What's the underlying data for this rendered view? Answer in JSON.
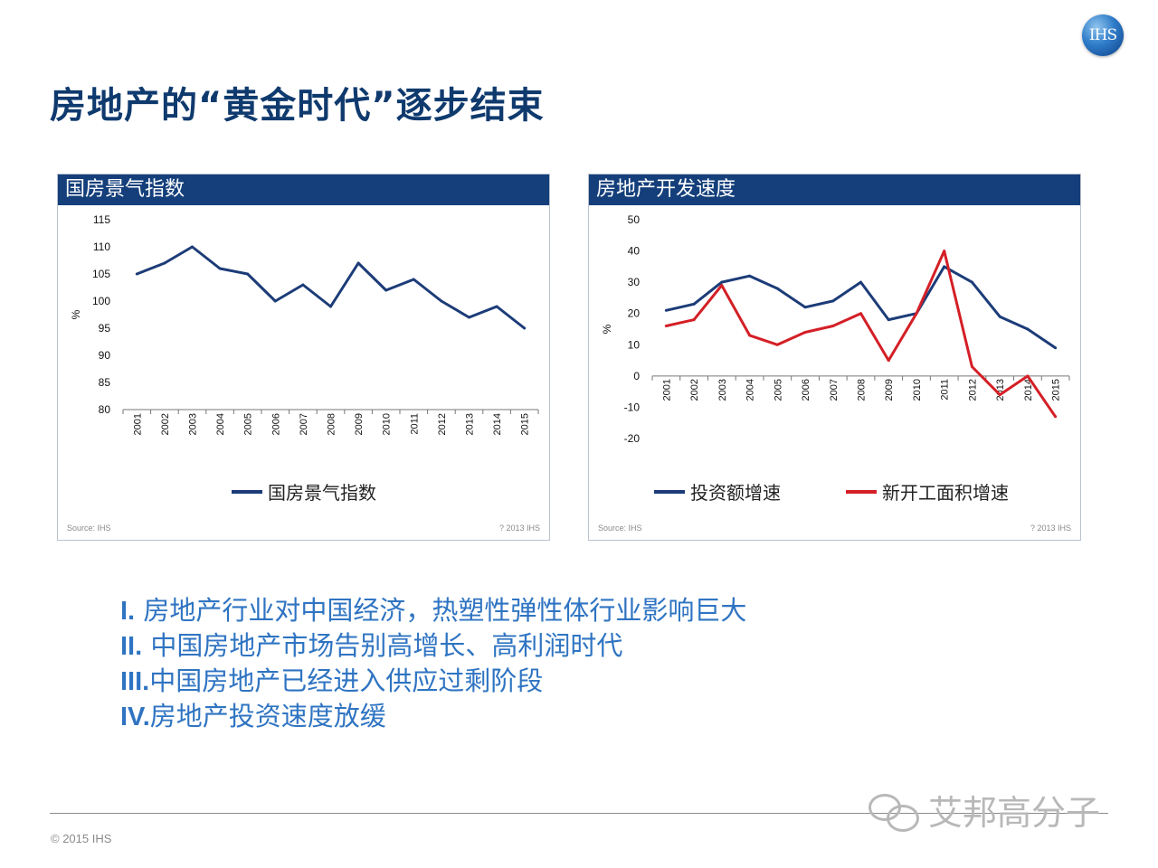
{
  "logo": {
    "text": "IHS"
  },
  "title": "房地产的“黄金时代”逐步结束",
  "left_panel": {
    "header": "国房景气指数",
    "source": "Source: IHS",
    "copyright": "? 2013 IHS",
    "legend": [
      {
        "name": "国房景气指数",
        "color": "#1c3c78"
      }
    ]
  },
  "right_panel": {
    "header": "房地产开发速度",
    "source": "Source: IHS",
    "copyright": "? 2013 IHS",
    "legend": [
      {
        "name": "投资额增速",
        "color": "#1c3c78"
      },
      {
        "name": "新开工面积增速",
        "color": "#d41f26"
      }
    ]
  },
  "bullets": [
    {
      "num": "I.",
      "text": "房地产行业对中国经济，热塑性弹性体行业影响巨大"
    },
    {
      "num": "II.",
      "text": "中国房地产市场告别高增长、高利润时代"
    },
    {
      "num": "III.",
      "text": "中国房地产已经进入供应过剩阶段"
    },
    {
      "num": "IV.",
      "text": "房地产投资速度放缓"
    }
  ],
  "footer": {
    "copyright": "© 2015 IHS"
  },
  "watermark": {
    "text": "艾邦高分子"
  },
  "chart_data": [
    {
      "type": "line",
      "title": "国房景气指数",
      "x": [
        "2001",
        "2002",
        "2003",
        "2004",
        "2005",
        "2006",
        "2007",
        "2008",
        "2009",
        "2010",
        "2011",
        "2012",
        "2013",
        "2014",
        "2015"
      ],
      "series": [
        {
          "name": "国房景气指数",
          "color": "#1c3c78",
          "values": [
            105,
            107,
            110,
            106,
            105,
            100,
            103,
            99,
            107,
            102,
            104,
            100,
            97,
            99,
            95
          ]
        }
      ],
      "ylabel": "%",
      "ylim": [
        80,
        115
      ],
      "yticks": [
        80,
        85,
        90,
        95,
        100,
        105,
        110,
        115
      ],
      "grid": false,
      "legend": "bottom"
    },
    {
      "type": "line",
      "title": "房地产开发速度",
      "x": [
        "2001",
        "2002",
        "2003",
        "2004",
        "2005",
        "2006",
        "2007",
        "2008",
        "2009",
        "2010",
        "2011",
        "2012",
        "2013",
        "2014",
        "2015"
      ],
      "series": [
        {
          "name": "投资额增速",
          "color": "#1c3c78",
          "values": [
            21,
            23,
            30,
            32,
            28,
            22,
            24,
            30,
            18,
            20,
            35,
            30,
            19,
            15,
            9
          ]
        },
        {
          "name": "新开工面积增速",
          "color": "#d41f26",
          "values": [
            16,
            18,
            29,
            13,
            10,
            14,
            16,
            20,
            5,
            20,
            40,
            3,
            -6,
            0,
            -13
          ]
        }
      ],
      "ylabel": "%",
      "ylim": [
        -20,
        50
      ],
      "yticks": [
        -20,
        -10,
        0,
        10,
        20,
        30,
        40,
        50
      ],
      "grid": false,
      "legend": "bottom"
    }
  ]
}
